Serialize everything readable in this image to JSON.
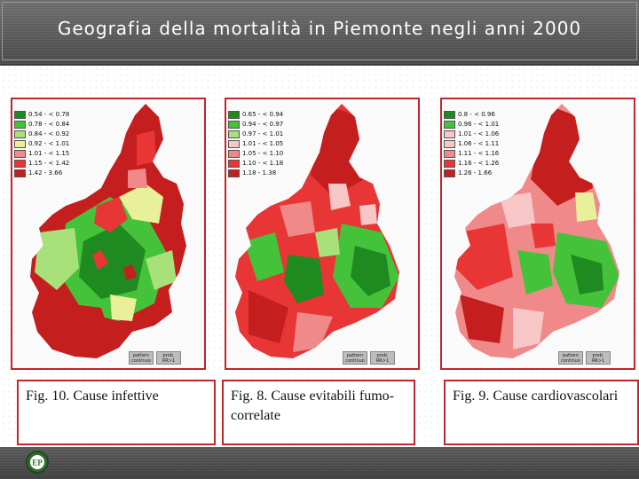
{
  "slide": {
    "title": "Geografia della mortalità in Piemonte negli anni 2000"
  },
  "colors": {
    "dark_green": "#1f8a1f",
    "green": "#44c23a",
    "light_green": "#a8e07a",
    "yellow_green": "#e8f09a",
    "light_pink": "#f7c6c6",
    "pink": "#f08a8a",
    "red": "#e83535",
    "dark_red": "#c41e1e",
    "frame_red": "#c0262b"
  },
  "maps": [
    {
      "caption": "Fig. 10. Cause infettive",
      "legend": [
        "0.54 - < 0.78",
        "0.78 - < 0.84",
        "0.84 - < 0.92",
        "0.92 - < 1.01",
        "1.01 - < 1.15",
        "1.15 - < 1.42",
        "1.42 - 3.66"
      ],
      "legend_colors": [
        "#1f8a1f",
        "#44c23a",
        "#a8e07a",
        "#e8f09a",
        "#f08a8a",
        "#e83535",
        "#c41e1e"
      ],
      "buttons": [
        "pattern continuo",
        "prob. RR>1"
      ]
    },
    {
      "caption": "Fig. 8. Cause evitabili fumo-correlate",
      "legend": [
        "0.65 - < 0.94",
        "0.94 - < 0.97",
        "0.97 - < 1.01",
        "1.01 - < 1.05",
        "1.05 - < 1.10",
        "1.10 - < 1.18",
        "1.18 - 1.38"
      ],
      "legend_colors": [
        "#1f8a1f",
        "#44c23a",
        "#a8e07a",
        "#f7c6c6",
        "#f08a8a",
        "#e83535",
        "#c41e1e"
      ],
      "buttons": [
        "pattern continuo",
        "prob. RR>1"
      ]
    },
    {
      "caption": "Fig. 9. Cause cardiovascolari",
      "legend": [
        "0.8 - < 0.96",
        "0.96 - < 1.01",
        "1.01 - < 1.06",
        "1.06 - < 1.11",
        "1.11 - < 1.16",
        "1.16 - < 1.26",
        "1.26 - 1.66"
      ],
      "legend_colors": [
        "#1f8a1f",
        "#44c23a",
        "#f7c6c6",
        "#f7c6c6",
        "#f08a8a",
        "#e83535",
        "#c41e1e"
      ],
      "buttons": [
        "pattern continuo",
        "prob. RR>1"
      ]
    }
  ],
  "footer": {
    "logo_text": "EP"
  }
}
